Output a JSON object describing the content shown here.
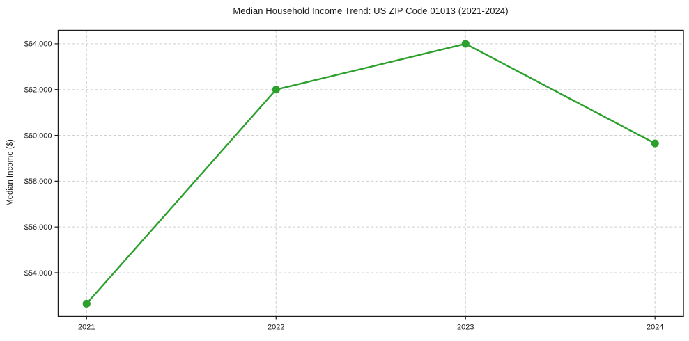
{
  "figure": {
    "title": "Median Household Income Trend: US ZIP Code 01013 (2021-2024)",
    "y_axis_label": "Median Income ($)"
  },
  "chart_data": {
    "type": "line",
    "title": "Median Household Income Trend: US ZIP Code 01013 (2021-2024)",
    "xlabel": "",
    "ylabel": "Median Income ($)",
    "x": [
      2021,
      2022,
      2023,
      2024
    ],
    "series": [
      {
        "name": "Median Household Income",
        "values": [
          52650,
          62000,
          64000,
          59650
        ]
      }
    ],
    "x_tick_labels": [
      "2021",
      "2022",
      "2023",
      "2024"
    ],
    "y_tick_values": [
      54000,
      56000,
      58000,
      60000,
      62000,
      64000
    ],
    "y_tick_labels": [
      "$54,000",
      "$56,000",
      "$58,000",
      "$60,000",
      "$62,000",
      "$64,000"
    ],
    "xlim": [
      2020.85,
      2024.15
    ],
    "ylim": [
      52100,
      64590
    ],
    "grid": "both-dashed",
    "legend": "none",
    "marker": "circle",
    "line_color": "#2ca02c",
    "marker_color": "#2ca02c",
    "grid_color": "#cfcfcf",
    "axis_color": "#1a1a1a",
    "text_color": "#1a1a1a",
    "background_color": "#ffffff"
  }
}
